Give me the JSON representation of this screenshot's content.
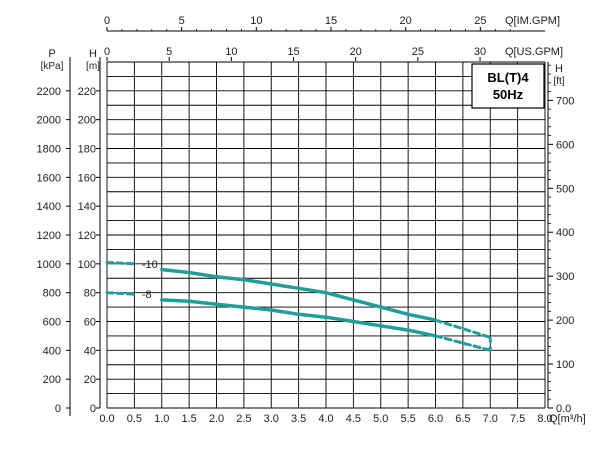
{
  "chart_data": {
    "type": "line",
    "title": "BL(T)4",
    "subtitle": "50Hz",
    "xlabel": "Q[m³/h]",
    "x_ticks": [
      "0.0",
      "0.5",
      "1.0",
      "1.5",
      "2.0",
      "2.5",
      "3.0",
      "3.5",
      "4.0",
      "4.5",
      "5.0",
      "5.5",
      "6.0",
      "6.5",
      "7.0",
      "7.5",
      "8.0"
    ],
    "xlim": [
      0,
      8
    ],
    "top_axis_1": {
      "label": "Q[IM.GPM]",
      "ticks": [
        "0",
        "5",
        "10",
        "15",
        "20",
        "25"
      ],
      "values": [
        0,
        5,
        10,
        15,
        20,
        25
      ]
    },
    "top_axis_2": {
      "label": "Q[US.GPM]",
      "ticks": [
        "0",
        "5",
        "10",
        "15",
        "20",
        "25",
        "30"
      ],
      "values": [
        0,
        5,
        10,
        15,
        20,
        25,
        30
      ]
    },
    "left_axis_1": {
      "label": "P",
      "unit": "[kPa]",
      "ticks": [
        "0",
        "200",
        "400",
        "600",
        "800",
        "1000",
        "1200",
        "1400",
        "1600",
        "1800",
        "2000",
        "2200"
      ]
    },
    "left_axis_2": {
      "label": "H",
      "unit": "[m]",
      "ticks": [
        "0",
        "20",
        "40",
        "60",
        "80",
        "100",
        "120",
        "140",
        "160",
        "180",
        "200",
        "220"
      ]
    },
    "ylim": [
      0,
      240
    ],
    "right_axis": {
      "label": "H",
      "unit": "[ft]",
      "ticks": [
        "0.0",
        "100",
        "200",
        "300",
        "400",
        "500",
        "600",
        "700"
      ],
      "values": [
        0,
        100,
        200,
        300,
        400,
        500,
        600,
        700
      ]
    },
    "grid": true,
    "colors": {
      "curve": "#1f9e9a",
      "grid": "#000000",
      "text": "#222222"
    },
    "series": [
      {
        "name": "-10",
        "solid": {
          "x": [
            1.0,
            1.5,
            2.0,
            2.5,
            3.0,
            3.5,
            4.0,
            4.5,
            5.0,
            5.5,
            6.0
          ],
          "y": [
            96,
            94,
            91,
            89,
            86,
            83,
            80,
            75,
            70,
            65,
            61
          ]
        },
        "dashed_start": {
          "x": [
            0.0,
            0.5
          ],
          "y": [
            101,
            100
          ]
        },
        "dashed_end": {
          "x": [
            6.0,
            6.5,
            7.0
          ],
          "y": [
            61,
            55,
            49
          ]
        }
      },
      {
        "name": "-8",
        "solid": {
          "x": [
            1.0,
            1.5,
            2.0,
            2.5,
            3.0,
            3.5,
            4.0,
            4.5,
            5.0,
            5.5,
            6.0
          ],
          "y": [
            75,
            74,
            72,
            70,
            68,
            65,
            63,
            60,
            57,
            54,
            50
          ]
        },
        "dashed_start": {
          "x": [
            0.0,
            0.5
          ],
          "y": [
            80,
            79
          ]
        },
        "dashed_end": {
          "x": [
            6.0,
            6.5,
            7.0
          ],
          "y": [
            50,
            45,
            40
          ]
        }
      }
    ]
  }
}
